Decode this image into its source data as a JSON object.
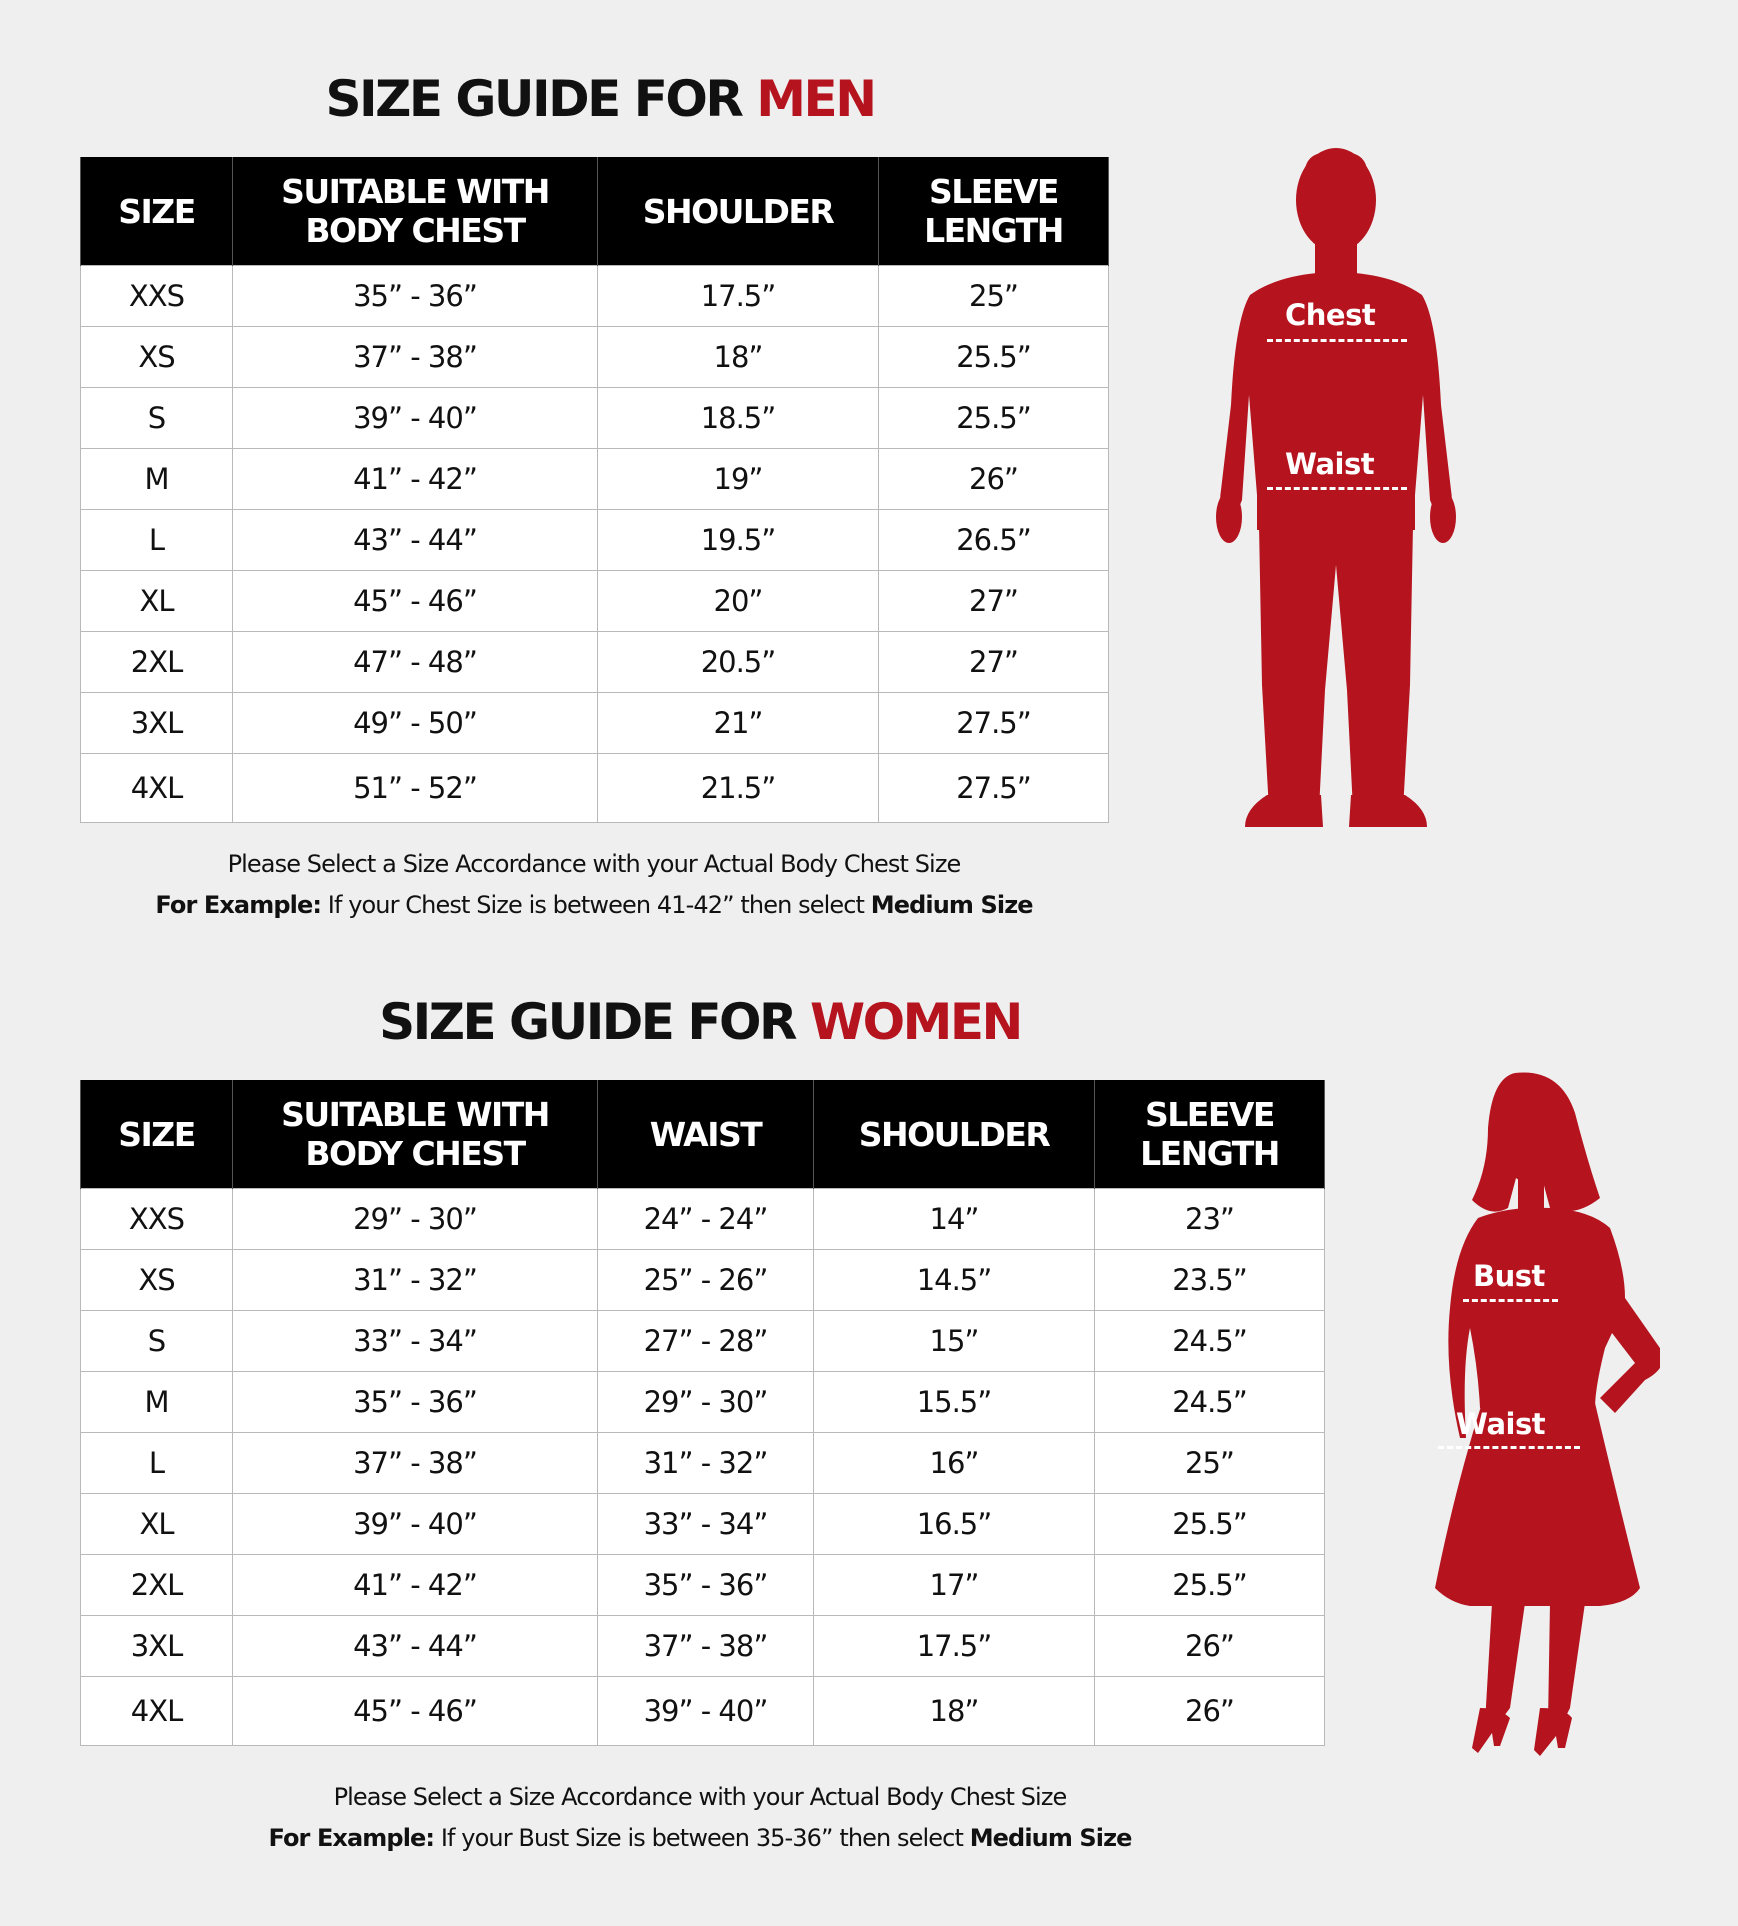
{
  "men": {
    "title_prefix": "SIZE GUIDE FOR",
    "title_accent": "MEN",
    "headers": [
      "SIZE",
      "SUITABLE WITH BODY CHEST",
      "SHOULDER",
      "SLEEVE LENGTH"
    ],
    "rows": [
      [
        "XXS",
        "35” - 36”",
        "17.5”",
        "25”"
      ],
      [
        "XS",
        "37” - 38”",
        "18”",
        "25.5”"
      ],
      [
        "S",
        "39” - 40”",
        "18.5”",
        "25.5”"
      ],
      [
        "M",
        "41” - 42”",
        "19”",
        "26”"
      ],
      [
        "L",
        "43” - 44”",
        "19.5”",
        "26.5”"
      ],
      [
        "XL",
        "45” - 46”",
        "20”",
        "27”"
      ],
      [
        "2XL",
        "47” - 48”",
        "20.5”",
        "27”"
      ],
      [
        "3XL",
        "49” - 50”",
        "21”",
        "27.5”"
      ],
      [
        "4XL",
        "51” - 52”",
        "21.5”",
        "27.5”"
      ]
    ],
    "note_line1": "Please Select a Size Accordance with your Actual Body Chest Size",
    "note_example_label": "For Example:",
    "note_example_text": " If your Chest Size is between 41-42” then select ",
    "note_example_size": "Medium Size",
    "figure_labels": {
      "upper": "Chest",
      "lower": "Waist"
    }
  },
  "women": {
    "title_prefix": "SIZE GUIDE FOR",
    "title_accent": "WOMEN",
    "headers": [
      "SIZE",
      "SUITABLE WITH BODY CHEST",
      "WAIST",
      "SHOULDER",
      "SLEEVE LENGTH"
    ],
    "rows": [
      [
        "XXS",
        "29” - 30”",
        "24” - 24”",
        "14”",
        "23”"
      ],
      [
        "XS",
        "31” - 32”",
        "25” - 26”",
        "14.5”",
        "23.5”"
      ],
      [
        "S",
        "33” - 34”",
        "27” - 28”",
        "15”",
        "24.5”"
      ],
      [
        "M",
        "35” - 36”",
        "29” - 30”",
        "15.5”",
        "24.5”"
      ],
      [
        "L",
        "37” - 38”",
        "31” - 32”",
        "16”",
        "25”"
      ],
      [
        "XL",
        "39” - 40”",
        "33” - 34”",
        "16.5”",
        "25.5”"
      ],
      [
        "2XL",
        "41” - 42”",
        "35” - 36”",
        "17”",
        "25.5”"
      ],
      [
        "3XL",
        "43” - 44”",
        "37” - 38”",
        "17.5”",
        "26”"
      ],
      [
        "4XL",
        "45” - 46”",
        "39” - 40”",
        "18”",
        "26”"
      ]
    ],
    "note_line1": "Please Select a Size Accordance with your Actual Body Chest Size",
    "note_example_label": "For Example:",
    "note_example_text": " If your Bust Size is between 35-36” then select ",
    "note_example_size": "Medium Size",
    "figure_labels": {
      "upper": "Bust",
      "lower": "Waist"
    }
  },
  "colors": {
    "accent": "#b5141f",
    "header_bg": "#000000",
    "background": "#efefef"
  }
}
